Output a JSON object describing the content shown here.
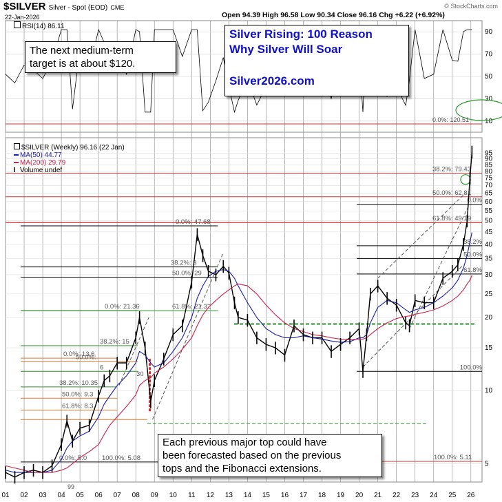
{
  "header": {
    "ticker": "$SILVER",
    "name": "Silver - Spot (EOD)",
    "exchange": "CME",
    "date": "22-Jan-2026",
    "ohlc": "Open 94.39  High 96.58  Low 90.34  Close 96.16  Chg +6.22 (+6.92%)",
    "watermark": "© StockCharts.com"
  },
  "rsi": {
    "label": "RSI(14) 86.11",
    "axis_ticks": [
      "90",
      "70",
      "50",
      "30",
      "10"
    ]
  },
  "legend": {
    "main": "$SILVER (Weekly) 96.16 (22 Jan)",
    "ma50": "MA(50) 44.77",
    "ma200": "MA(200) 29.79",
    "volume": "Volume undef"
  },
  "annotations": {
    "target_box": [
      "The next medium-term",
      "target is at about $120."
    ],
    "promo_box": [
      "Silver Rising: 100 Reason",
      "Why Silver Will Soar",
      "Silver2026.com"
    ],
    "note_box": [
      "Each previous major top could have",
      "been forecasted based on the previous",
      "tops and the Fibonacci extensions."
    ]
  },
  "fib_labels": {
    "t120": "0.0%: 120.51",
    "a": "0.0%: 47.68",
    "a382": "38.2%: 3",
    "a50": "50.0%: 29",
    "a618": "61.8%: 21.32",
    "b": "0.0%: 21.36",
    "b382": "38.2%: 15",
    "b50": "50.0%:",
    "b618": "6",
    "c": "0.0%: 13.6",
    "c382": "38.2%: 10.35",
    "c50": "50.0%: 9.3",
    "c618": "61.8%: 8.3",
    "c30": "30",
    "c100": "100.0%: 5.08",
    "d100": "0.0%: 5.0",
    "e382": "38.2%: 79.43",
    "e50": "50.0%: 62.81",
    "e618": "61.8%: 49.19",
    "f0": "0.0%",
    "f382": "38.2%",
    "f50": "50.0%",
    "f618": "61.8%",
    "f100": "100.0%",
    "e100": "100.0%: 5.11",
    "misc99": "99"
  },
  "chart_data": {
    "type": "line",
    "title": "$SILVER Silver - Spot (EOD) CME",
    "y_scale": "log",
    "ylim": [
      4.2,
      110
    ],
    "x_tick_labels": [
      "01",
      "02",
      "03",
      "04",
      "05",
      "06",
      "07",
      "08",
      "09",
      "10",
      "11",
      "12",
      "13",
      "14",
      "15",
      "16",
      "17",
      "18",
      "19",
      "20",
      "21",
      "22",
      "23",
      "24",
      "25",
      "26"
    ],
    "y_tick_labels": [
      "95",
      "90",
      "85",
      "80",
      "75",
      "70",
      "65",
      "60",
      "55",
      "50",
      "45",
      "40",
      "35",
      "30",
      "25",
      "20",
      "15",
      "10",
      "5"
    ],
    "y_ticks": [
      95,
      90,
      85,
      80,
      75,
      70,
      65,
      60,
      55,
      50,
      45,
      40,
      35,
      30,
      25,
      20,
      15,
      10,
      5
    ],
    "x": [
      2001.0,
      2001.5,
      2002.0,
      2002.5,
      2003.0,
      2003.5,
      2004.0,
      2004.3,
      2004.6,
      2005.0,
      2005.5,
      2006.0,
      2006.3,
      2006.6,
      2007.0,
      2007.5,
      2008.0,
      2008.2,
      2008.5,
      2008.8,
      2009.0,
      2009.5,
      2010.0,
      2010.5,
      2011.0,
      2011.3,
      2011.6,
      2011.9,
      2012.3,
      2012.7,
      2013.0,
      2013.3,
      2013.5,
      2014.0,
      2014.5,
      2015.0,
      2015.5,
      2016.0,
      2016.5,
      2017.0,
      2017.5,
      2018.0,
      2018.5,
      2019.0,
      2019.5,
      2020.0,
      2020.2,
      2020.4,
      2020.6,
      2021.0,
      2021.5,
      2022.0,
      2022.5,
      2022.7,
      2023.0,
      2023.5,
      2024.0,
      2024.5,
      2025.0,
      2025.3,
      2025.6,
      2025.8,
      2025.95,
      2026.06
    ],
    "series": [
      {
        "values": [
          4.6,
          4.4,
          4.6,
          4.7,
          4.6,
          4.9,
          6.0,
          7.5,
          6.2,
          7.0,
          7.2,
          9.5,
          11.0,
          11.5,
          13.0,
          13.0,
          16.5,
          20.0,
          15.0,
          9.0,
          11.0,
          13.5,
          17.0,
          18.5,
          28.0,
          44.0,
          36.0,
          31.0,
          30.0,
          32.5,
          30.5,
          23.0,
          20.0,
          19.5,
          16.5,
          15.5,
          15.0,
          14.0,
          18.5,
          17.0,
          16.5,
          16.5,
          14.5,
          15.5,
          16.5,
          18.0,
          12.0,
          17.0,
          25.0,
          27.0,
          24.0,
          22.5,
          19.0,
          18.5,
          23.5,
          23.0,
          23.0,
          29.0,
          31.0,
          33.0,
          40.0,
          50.0,
          75.0,
          96.16
        ]
      },
      {
        "name": "MA(50)",
        "values": [
          4.7,
          4.6,
          4.6,
          4.6,
          4.6,
          4.7,
          5.2,
          5.8,
          6.2,
          6.5,
          6.8,
          7.8,
          8.8,
          9.5,
          10.5,
          11.5,
          13.0,
          14.5,
          14.0,
          13.0,
          12.5,
          13.0,
          14.5,
          16.5,
          20.0,
          24.0,
          27.0,
          29.5,
          31.0,
          31.5,
          31.0,
          29.0,
          27.0,
          23.0,
          20.0,
          18.0,
          17.0,
          16.5,
          16.5,
          16.8,
          16.5,
          16.3,
          16.0,
          15.8,
          15.9,
          16.5,
          16.5,
          17.0,
          19.0,
          22.0,
          23.5,
          23.0,
          21.5,
          21.0,
          21.5,
          22.0,
          23.0,
          24.5,
          26.5,
          28.5,
          32.0,
          36.0,
          41.0,
          44.77
        ]
      },
      {
        "name": "MA(200)",
        "values": [
          4.9,
          4.8,
          4.7,
          4.6,
          4.6,
          4.6,
          4.7,
          4.8,
          5.0,
          5.3,
          5.6,
          6.0,
          6.6,
          7.2,
          7.8,
          8.6,
          9.6,
          10.5,
          11.0,
          11.3,
          11.8,
          12.5,
          13.5,
          14.8,
          16.5,
          18.5,
          20.5,
          22.0,
          23.5,
          25.0,
          26.0,
          27.0,
          27.5,
          27.0,
          25.0,
          22.5,
          20.5,
          19.0,
          18.0,
          17.5,
          17.0,
          16.8,
          16.5,
          16.3,
          16.2,
          16.3,
          16.3,
          16.5,
          17.0,
          18.0,
          19.0,
          19.8,
          20.2,
          20.3,
          20.6,
          21.0,
          21.5,
          22.3,
          23.5,
          24.5,
          26.0,
          27.5,
          28.5,
          29.79
        ]
      }
    ]
  },
  "colors": {
    "price": "#000000",
    "ma50": "#1a1aa8",
    "ma200": "#c8204b",
    "fib_red": "#d33030",
    "fib_green": "#2a8c2a",
    "fib_orange": "#e07a2a",
    "promo_text": "#1010c8",
    "support": "#2a8c2a",
    "grid": "#999999"
  }
}
